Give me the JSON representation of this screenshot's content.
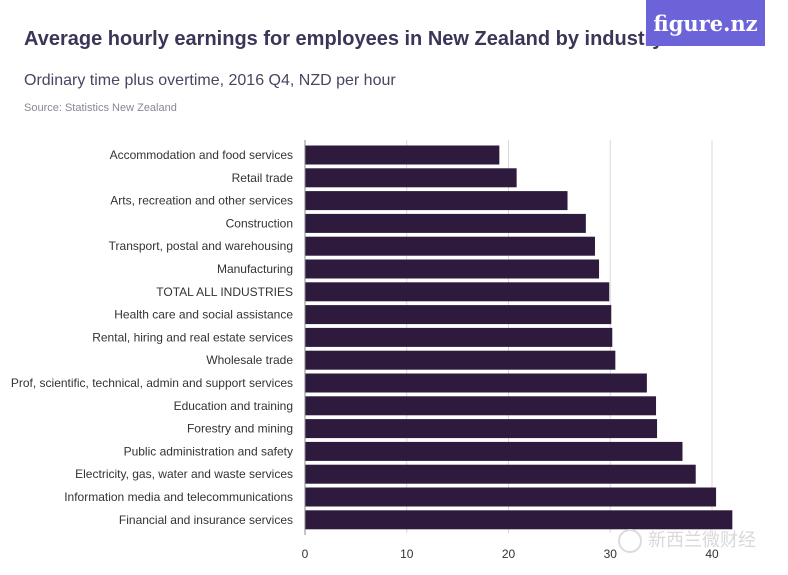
{
  "header": {
    "title": "Average hourly earnings for employees in New Zealand by industry",
    "subtitle": "Ordinary time plus overtime, 2016 Q4, NZD per hour",
    "source": "Source: Statistics New Zealand",
    "logo": "figure.nz"
  },
  "watermark": {
    "text": "新西兰微财经",
    "icon": "wechat-icon"
  },
  "colors": {
    "bar": "#2e1a3c",
    "grid": "#d9d9d9",
    "logo_bg": "#6c63d8"
  },
  "chart_data": {
    "type": "bar",
    "orientation": "horizontal",
    "title": "Average hourly earnings for employees in New Zealand by industry",
    "subtitle": "Ordinary time plus overtime, 2016 Q4, NZD per hour",
    "xlabel": "",
    "ylabel": "",
    "xlim": [
      0,
      40
    ],
    "xticks": [
      0,
      10,
      20,
      30,
      40
    ],
    "grid": true,
    "categories": [
      "Accommodation and food services",
      "Retail trade",
      "Arts, recreation and other services",
      "Construction",
      "Transport, postal and warehousing",
      "Manufacturing",
      "TOTAL ALL INDUSTRIES",
      "Health care and social assistance",
      "Rental, hiring and real estate services",
      "Wholesale trade",
      "Prof, scientific, technical, admin and support services",
      "Education and training",
      "Forestry and mining",
      "Public administration and safety",
      "Electricity, gas, water and waste services",
      "Information media and telecommunications",
      "Financial and insurance services"
    ],
    "values": [
      19.1,
      20.8,
      25.8,
      27.6,
      28.5,
      28.9,
      29.9,
      30.1,
      30.2,
      30.5,
      33.6,
      34.5,
      34.6,
      37.1,
      38.4,
      40.4,
      42.0
    ]
  }
}
